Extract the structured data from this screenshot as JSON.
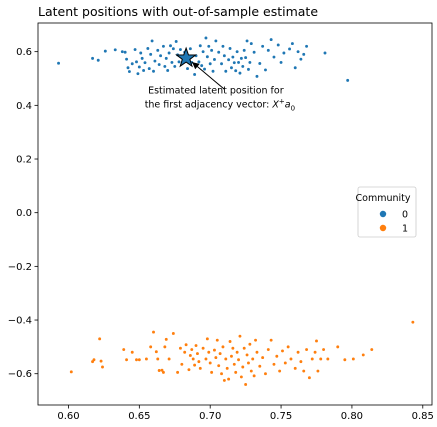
{
  "chart_data": {
    "type": "scatter",
    "title": "Latent positions with out-of-sample estimate",
    "xlabel": "",
    "ylabel": "",
    "xlim": [
      0.5785,
      0.8565
    ],
    "ylim": [
      -0.7166,
      0.7068
    ],
    "xticks": [
      0.6,
      0.65,
      0.7,
      0.75,
      0.8,
      0.85
    ],
    "xtick_labels": [
      "0.60",
      "0.65",
      "0.70",
      "0.75",
      "0.80",
      "0.85"
    ],
    "yticks": [
      -0.6,
      -0.4,
      -0.2,
      0.0,
      0.2,
      0.4,
      0.6
    ],
    "ytick_labels": [
      "−0.6",
      "−0.4",
      "−0.2",
      "0.0",
      "0.2",
      "0.4",
      "0.6"
    ],
    "grid": false,
    "legend": {
      "title": "Community",
      "placement": "center-right",
      "entries": [
        {
          "label": "0",
          "color": "#1f77b4"
        },
        {
          "label": "1",
          "color": "#ff7f0e"
        }
      ]
    },
    "series": [
      {
        "name": "0",
        "color": "#1f77b4",
        "points": [
          [
            0.593,
            0.557
          ],
          [
            0.617,
            0.575
          ],
          [
            0.621,
            0.568
          ],
          [
            0.626,
            0.602
          ],
          [
            0.633,
            0.607
          ],
          [
            0.638,
            0.6
          ],
          [
            0.64,
            0.598
          ],
          [
            0.641,
            0.572
          ],
          [
            0.642,
            0.54
          ],
          [
            0.643,
            0.526
          ],
          [
            0.645,
            0.555
          ],
          [
            0.647,
            0.608
          ],
          [
            0.648,
            0.562
          ],
          [
            0.649,
            0.518
          ],
          [
            0.65,
            0.543
          ],
          [
            0.651,
            0.595
          ],
          [
            0.652,
            0.575
          ],
          [
            0.653,
            0.53
          ],
          [
            0.654,
            0.559
          ],
          [
            0.656,
            0.612
          ],
          [
            0.657,
            0.537
          ],
          [
            0.658,
            0.59
          ],
          [
            0.659,
            0.64
          ],
          [
            0.66,
            0.527
          ],
          [
            0.661,
            0.565
          ],
          [
            0.663,
            0.605
          ],
          [
            0.664,
            0.552
          ],
          [
            0.665,
            0.585
          ],
          [
            0.667,
            0.62
          ],
          [
            0.668,
            0.545
          ],
          [
            0.669,
            0.575
          ],
          [
            0.67,
            0.53
          ],
          [
            0.671,
            0.595
          ],
          [
            0.672,
            0.622
          ],
          [
            0.673,
            0.56
          ],
          [
            0.674,
            0.611
          ],
          [
            0.675,
            0.545
          ],
          [
            0.676,
            0.638
          ],
          [
            0.677,
            0.588
          ],
          [
            0.678,
            0.562
          ],
          [
            0.679,
            0.608
          ],
          [
            0.681,
            0.571
          ],
          [
            0.682,
            0.598
          ],
          [
            0.684,
            0.537
          ],
          [
            0.686,
            0.611
          ],
          [
            0.687,
            0.56
          ],
          [
            0.689,
            0.515
          ],
          [
            0.69,
            0.585
          ],
          [
            0.692,
            0.562
          ],
          [
            0.693,
            0.622
          ],
          [
            0.694,
            0.548
          ],
          [
            0.695,
            0.6
          ],
          [
            0.696,
            0.535
          ],
          [
            0.697,
            0.651
          ],
          [
            0.698,
            0.581
          ],
          [
            0.699,
            0.62
          ],
          [
            0.7,
            0.555
          ],
          [
            0.701,
            0.605
          ],
          [
            0.702,
            0.527
          ],
          [
            0.703,
            0.571
          ],
          [
            0.704,
            0.64
          ],
          [
            0.706,
            0.598
          ],
          [
            0.708,
            0.555
          ],
          [
            0.709,
            0.62
          ],
          [
            0.71,
            0.585
          ],
          [
            0.711,
            0.527
          ],
          [
            0.713,
            0.57
          ],
          [
            0.714,
            0.612
          ],
          [
            0.715,
            0.54
          ],
          [
            0.716,
            0.58
          ],
          [
            0.717,
            0.559
          ],
          [
            0.718,
            0.529
          ],
          [
            0.719,
            0.6
          ],
          [
            0.72,
            0.56
          ],
          [
            0.721,
            0.52
          ],
          [
            0.722,
            0.575
          ],
          [
            0.723,
            0.545
          ],
          [
            0.724,
            0.605
          ],
          [
            0.725,
            0.578
          ],
          [
            0.726,
            0.64
          ],
          [
            0.727,
            0.534
          ],
          [
            0.728,
            0.56
          ],
          [
            0.729,
            0.63
          ],
          [
            0.731,
            0.598
          ],
          [
            0.733,
            0.508
          ],
          [
            0.735,
            0.556
          ],
          [
            0.737,
            0.62
          ],
          [
            0.739,
            0.532
          ],
          [
            0.741,
            0.605
          ],
          [
            0.743,
            0.645
          ],
          [
            0.745,
            0.58
          ],
          [
            0.748,
            0.625
          ],
          [
            0.75,
            0.56
          ],
          [
            0.752,
            0.595
          ],
          [
            0.756,
            0.61
          ],
          [
            0.758,
            0.63
          ],
          [
            0.76,
            0.54
          ],
          [
            0.762,
            0.6
          ],
          [
            0.764,
            0.572
          ],
          [
            0.766,
            0.59
          ],
          [
            0.768,
            0.62
          ],
          [
            0.781,
            0.595
          ],
          [
            0.797,
            0.493
          ]
        ]
      },
      {
        "name": "1",
        "color": "#ff7f0e",
        "points": [
          [
            0.602,
            -0.593
          ],
          [
            0.617,
            -0.555
          ],
          [
            0.618,
            -0.548
          ],
          [
            0.622,
            -0.47
          ],
          [
            0.623,
            -0.553
          ],
          [
            0.624,
            -0.575
          ],
          [
            0.639,
            -0.51
          ],
          [
            0.641,
            -0.548
          ],
          [
            0.645,
            -0.52
          ],
          [
            0.648,
            -0.548
          ],
          [
            0.65,
            -0.548
          ],
          [
            0.655,
            -0.545
          ],
          [
            0.658,
            -0.5
          ],
          [
            0.66,
            -0.445
          ],
          [
            0.662,
            -0.518
          ],
          [
            0.663,
            -0.545
          ],
          [
            0.664,
            -0.588
          ],
          [
            0.666,
            -0.587
          ],
          [
            0.667,
            -0.595
          ],
          [
            0.668,
            -0.5
          ],
          [
            0.669,
            -0.472
          ],
          [
            0.671,
            -0.545
          ],
          [
            0.674,
            -0.45
          ],
          [
            0.677,
            -0.595
          ],
          [
            0.679,
            -0.505
          ],
          [
            0.68,
            -0.565
          ],
          [
            0.682,
            -0.52
          ],
          [
            0.683,
            -0.492
          ],
          [
            0.685,
            -0.585
          ],
          [
            0.686,
            -0.532
          ],
          [
            0.687,
            -0.51
          ],
          [
            0.688,
            -0.545
          ],
          [
            0.689,
            -0.568
          ],
          [
            0.69,
            -0.495
          ],
          [
            0.691,
            -0.525
          ],
          [
            0.692,
            -0.555
          ],
          [
            0.693,
            -0.58
          ],
          [
            0.695,
            -0.505
          ],
          [
            0.697,
            -0.545
          ],
          [
            0.698,
            -0.47
          ],
          [
            0.699,
            -0.52
          ],
          [
            0.7,
            -0.56
          ],
          [
            0.701,
            -0.595
          ],
          [
            0.703,
            -0.512
          ],
          [
            0.704,
            -0.54
          ],
          [
            0.705,
            -0.475
          ],
          [
            0.706,
            -0.57
          ],
          [
            0.707,
            -0.525
          ],
          [
            0.708,
            -0.6
          ],
          [
            0.709,
            -0.5
          ],
          [
            0.71,
            -0.625
          ],
          [
            0.711,
            -0.545
          ],
          [
            0.712,
            -0.58
          ],
          [
            0.713,
            -0.62
          ],
          [
            0.714,
            -0.48
          ],
          [
            0.715,
            -0.535
          ],
          [
            0.716,
            -0.505
          ],
          [
            0.717,
            -0.565
          ],
          [
            0.718,
            -0.595
          ],
          [
            0.719,
            -0.52
          ],
          [
            0.72,
            -0.548
          ],
          [
            0.721,
            -0.46
          ],
          [
            0.722,
            -0.612
          ],
          [
            0.723,
            -0.575
          ],
          [
            0.724,
            -0.505
          ],
          [
            0.725,
            -0.64
          ],
          [
            0.726,
            -0.53
          ],
          [
            0.727,
            -0.56
          ],
          [
            0.728,
            -0.49
          ],
          [
            0.729,
            -0.59
          ],
          [
            0.73,
            -0.545
          ],
          [
            0.731,
            -0.608
          ],
          [
            0.732,
            -0.475
          ],
          [
            0.733,
            -0.52
          ],
          [
            0.735,
            -0.572
          ],
          [
            0.737,
            -0.54
          ],
          [
            0.739,
            -0.6
          ],
          [
            0.741,
            -0.51
          ],
          [
            0.743,
            -0.475
          ],
          [
            0.745,
            -0.565
          ],
          [
            0.747,
            -0.535
          ],
          [
            0.749,
            -0.59
          ],
          [
            0.751,
            -0.515
          ],
          [
            0.753,
            -0.56
          ],
          [
            0.755,
            -0.5
          ],
          [
            0.757,
            -0.545
          ],
          [
            0.76,
            -0.58
          ],
          [
            0.762,
            -0.52
          ],
          [
            0.764,
            -0.555
          ],
          [
            0.766,
            -0.59
          ],
          [
            0.768,
            -0.51
          ],
          [
            0.77,
            -0.615
          ],
          [
            0.772,
            -0.545
          ],
          [
            0.774,
            -0.52
          ],
          [
            0.775,
            -0.478
          ],
          [
            0.776,
            -0.59
          ],
          [
            0.778,
            -0.545
          ],
          [
            0.78,
            -0.51
          ],
          [
            0.783,
            -0.545
          ],
          [
            0.79,
            -0.5
          ],
          [
            0.795,
            -0.548
          ],
          [
            0.801,
            -0.545
          ],
          [
            0.808,
            -0.53
          ],
          [
            0.814,
            -0.51
          ],
          [
            0.843,
            -0.408
          ]
        ]
      }
    ],
    "estimate": {
      "x": 0.683,
      "y": 0.576,
      "color": "#1f77b4",
      "marker": "star"
    },
    "annotation": {
      "line1": "Estimated latent position for",
      "line2": "the first adjacency vector: ",
      "math_X": "X",
      "math_plus": "+",
      "math_a": "a",
      "math_sub": "0",
      "text_x": 0.704,
      "text_y": 0.418,
      "arrow_color": "#000000"
    }
  }
}
